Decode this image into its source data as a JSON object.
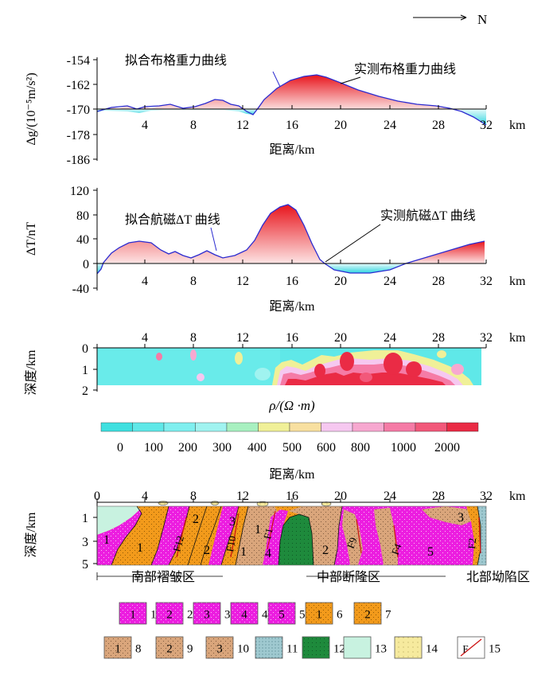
{
  "north_label": "N",
  "unit_km": "km",
  "distance_label": "距离/km",
  "x_ticks": [
    "4",
    "8",
    "12",
    "16",
    "20",
    "24",
    "28",
    "32"
  ],
  "gravity": {
    "ylabel": "Δg/(10⁻⁵m/s²)",
    "yticks": [
      "-154",
      "-162",
      "-170",
      "-178",
      "-186"
    ],
    "fit_label": "拟合布格重力曲线",
    "obs_label": "实测布格重力曲线"
  },
  "magnetic": {
    "ylabel": "ΔT/nT",
    "yticks": [
      "120",
      "80",
      "40",
      "0",
      "-40"
    ],
    "fit_label": "拟合航磁ΔT 曲线",
    "obs_label": "实测航磁ΔT 曲线"
  },
  "resistivity": {
    "ylabel": "深度/km",
    "depth_ticks": [
      "0",
      "1",
      "2"
    ],
    "colorbar_title": "ρ/(Ω ·m)",
    "colorbar_ticks": [
      "0",
      "100",
      "200",
      "300",
      "400",
      "500",
      "600",
      "800",
      "1000",
      "2000"
    ],
    "colors": [
      "#3fe0e0",
      "#5fe8e8",
      "#7fefef",
      "#a0f3f0",
      "#a8f0c0",
      "#f0f098",
      "#f8e0a0",
      "#f6c8f0",
      "#f7a8d0",
      "#f57ba6",
      "#f2587a",
      "#ea2b45"
    ]
  },
  "geology": {
    "ylabel": "深度/km",
    "depth_ticks": [
      "1",
      "3",
      "5"
    ],
    "zero_label": "0",
    "zones": [
      "南部褶皱区",
      "中部断隆区",
      "北部坳陷区"
    ],
    "faults": [
      "F12",
      "F10",
      "F1",
      "F9",
      "F4",
      "F2"
    ],
    "unit_labels": [
      "1",
      "1",
      "1",
      "1",
      "2",
      "2",
      "2",
      "3",
      "3",
      "4",
      "5"
    ]
  },
  "legend": [
    {
      "num": "1",
      "label": "1",
      "color": "#ec1ee0"
    },
    {
      "num": "2",
      "label": "2",
      "color": "#ec1ee0"
    },
    {
      "num": "3",
      "label": "3",
      "color": "#ec1ee0"
    },
    {
      "num": "4",
      "label": "4",
      "color": "#ec1ee0"
    },
    {
      "num": "5",
      "label": "5",
      "color": "#ec1ee0"
    },
    {
      "num": "1",
      "label": "6",
      "color": "#f29a1b"
    },
    {
      "num": "2",
      "label": "7",
      "color": "#f29a1b"
    },
    {
      "num": "1",
      "label": "8",
      "color": "#d9a57b"
    },
    {
      "num": "2",
      "label": "9",
      "color": "#d9a57b"
    },
    {
      "num": "3",
      "label": "10",
      "color": "#d9a57b"
    },
    {
      "num": "",
      "label": "11",
      "color": "#9fc9d0"
    },
    {
      "num": "",
      "label": "12",
      "color": "#1e8a3c"
    },
    {
      "num": "",
      "label": "13",
      "color": "#c8f2e0"
    },
    {
      "num": "",
      "label": "14",
      "color": "#f6ea9e"
    },
    {
      "num": "F",
      "label": "15",
      "color": "#ffffff"
    }
  ]
}
